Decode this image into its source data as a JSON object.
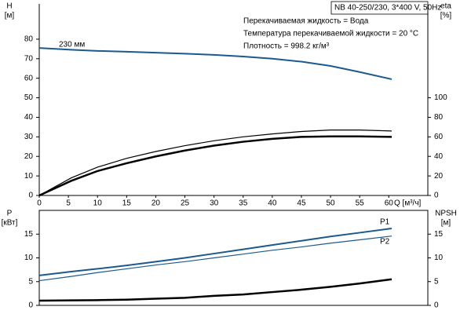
{
  "chart_data": [
    {
      "type": "line",
      "annotations": [
        "NB 40-250/230, 3*400 V, 50Hz",
        "Перекачиваемая жидкость = Вода",
        "Температура перекачиваемой жидкости = 20 °C",
        "Плотность = 998.2 кг/м³"
      ],
      "y_label": "H",
      "y_unit": "[м]",
      "y2_label": "eta",
      "y2_unit": "[%]",
      "x_label": "Q [м³/ч]",
      "x": [
        0,
        5.5,
        10,
        15,
        20,
        25,
        30,
        35,
        40,
        45,
        50,
        55,
        60.5
      ],
      "xlim": [
        0,
        66.7
      ],
      "xticks": [
        0,
        5,
        10,
        15,
        20,
        25,
        30,
        35,
        40,
        45,
        50,
        55,
        60
      ],
      "ylim": [
        0,
        88
      ],
      "yticks": [
        0,
        10,
        20,
        30,
        40,
        50,
        60,
        70,
        80
      ],
      "y2lim": [
        0,
        176
      ],
      "y2ticks": [
        0,
        20,
        40,
        60,
        80,
        100
      ],
      "series": [
        {
          "name": "230 мм",
          "color": "#1a5a8e",
          "values": [
            75.5,
            74.6,
            74,
            73.6,
            73.1,
            72.6,
            72,
            71.1,
            70,
            68.5,
            66.3,
            63.2,
            59.5
          ]
        },
        {
          "color": "#000000",
          "axis": "y2",
          "values": [
            0,
            15,
            25,
            33,
            40,
            46,
            51,
            55,
            58,
            60,
            60.5,
            60.5,
            60
          ]
        },
        {
          "color": "#000000",
          "axis": "y2",
          "values": [
            0,
            18,
            29,
            38,
            45,
            51,
            56,
            60,
            63,
            65.5,
            67,
            67,
            66
          ]
        }
      ]
    },
    {
      "type": "line",
      "y_label": "P",
      "y_unit": "[кВт]",
      "y2_label": "NPSH",
      "y2_unit": "[м]",
      "x": [
        0,
        5.5,
        10,
        15,
        20,
        25,
        30,
        35,
        40,
        45,
        50,
        55,
        60.5
      ],
      "xlim": [
        0,
        66.7
      ],
      "ylim": [
        0,
        20
      ],
      "yticks": [
        0,
        5,
        10,
        15
      ],
      "y2lim": [
        0,
        20
      ],
      "y2ticks": [
        0,
        5,
        10,
        15
      ],
      "series": [
        {
          "name": "P1",
          "color": "#1a5a8e",
          "values": [
            6.3,
            7.1,
            7.7,
            8.4,
            9.2,
            10,
            10.9,
            11.8,
            12.7,
            13.6,
            14.5,
            15.3,
            16.2
          ]
        },
        {
          "name": "P2",
          "color": "#1a5a8e",
          "values": [
            5.2,
            6.1,
            6.9,
            7.7,
            8.5,
            9.2,
            10,
            10.8,
            11.6,
            12.3,
            13.1,
            13.8,
            14.6
          ]
        },
        {
          "color": "#000000",
          "axis": "y2",
          "values": [
            1,
            1.05,
            1.1,
            1.2,
            1.4,
            1.6,
            2,
            2.3,
            2.8,
            3.3,
            3.9,
            4.6,
            5.5
          ]
        }
      ]
    }
  ]
}
